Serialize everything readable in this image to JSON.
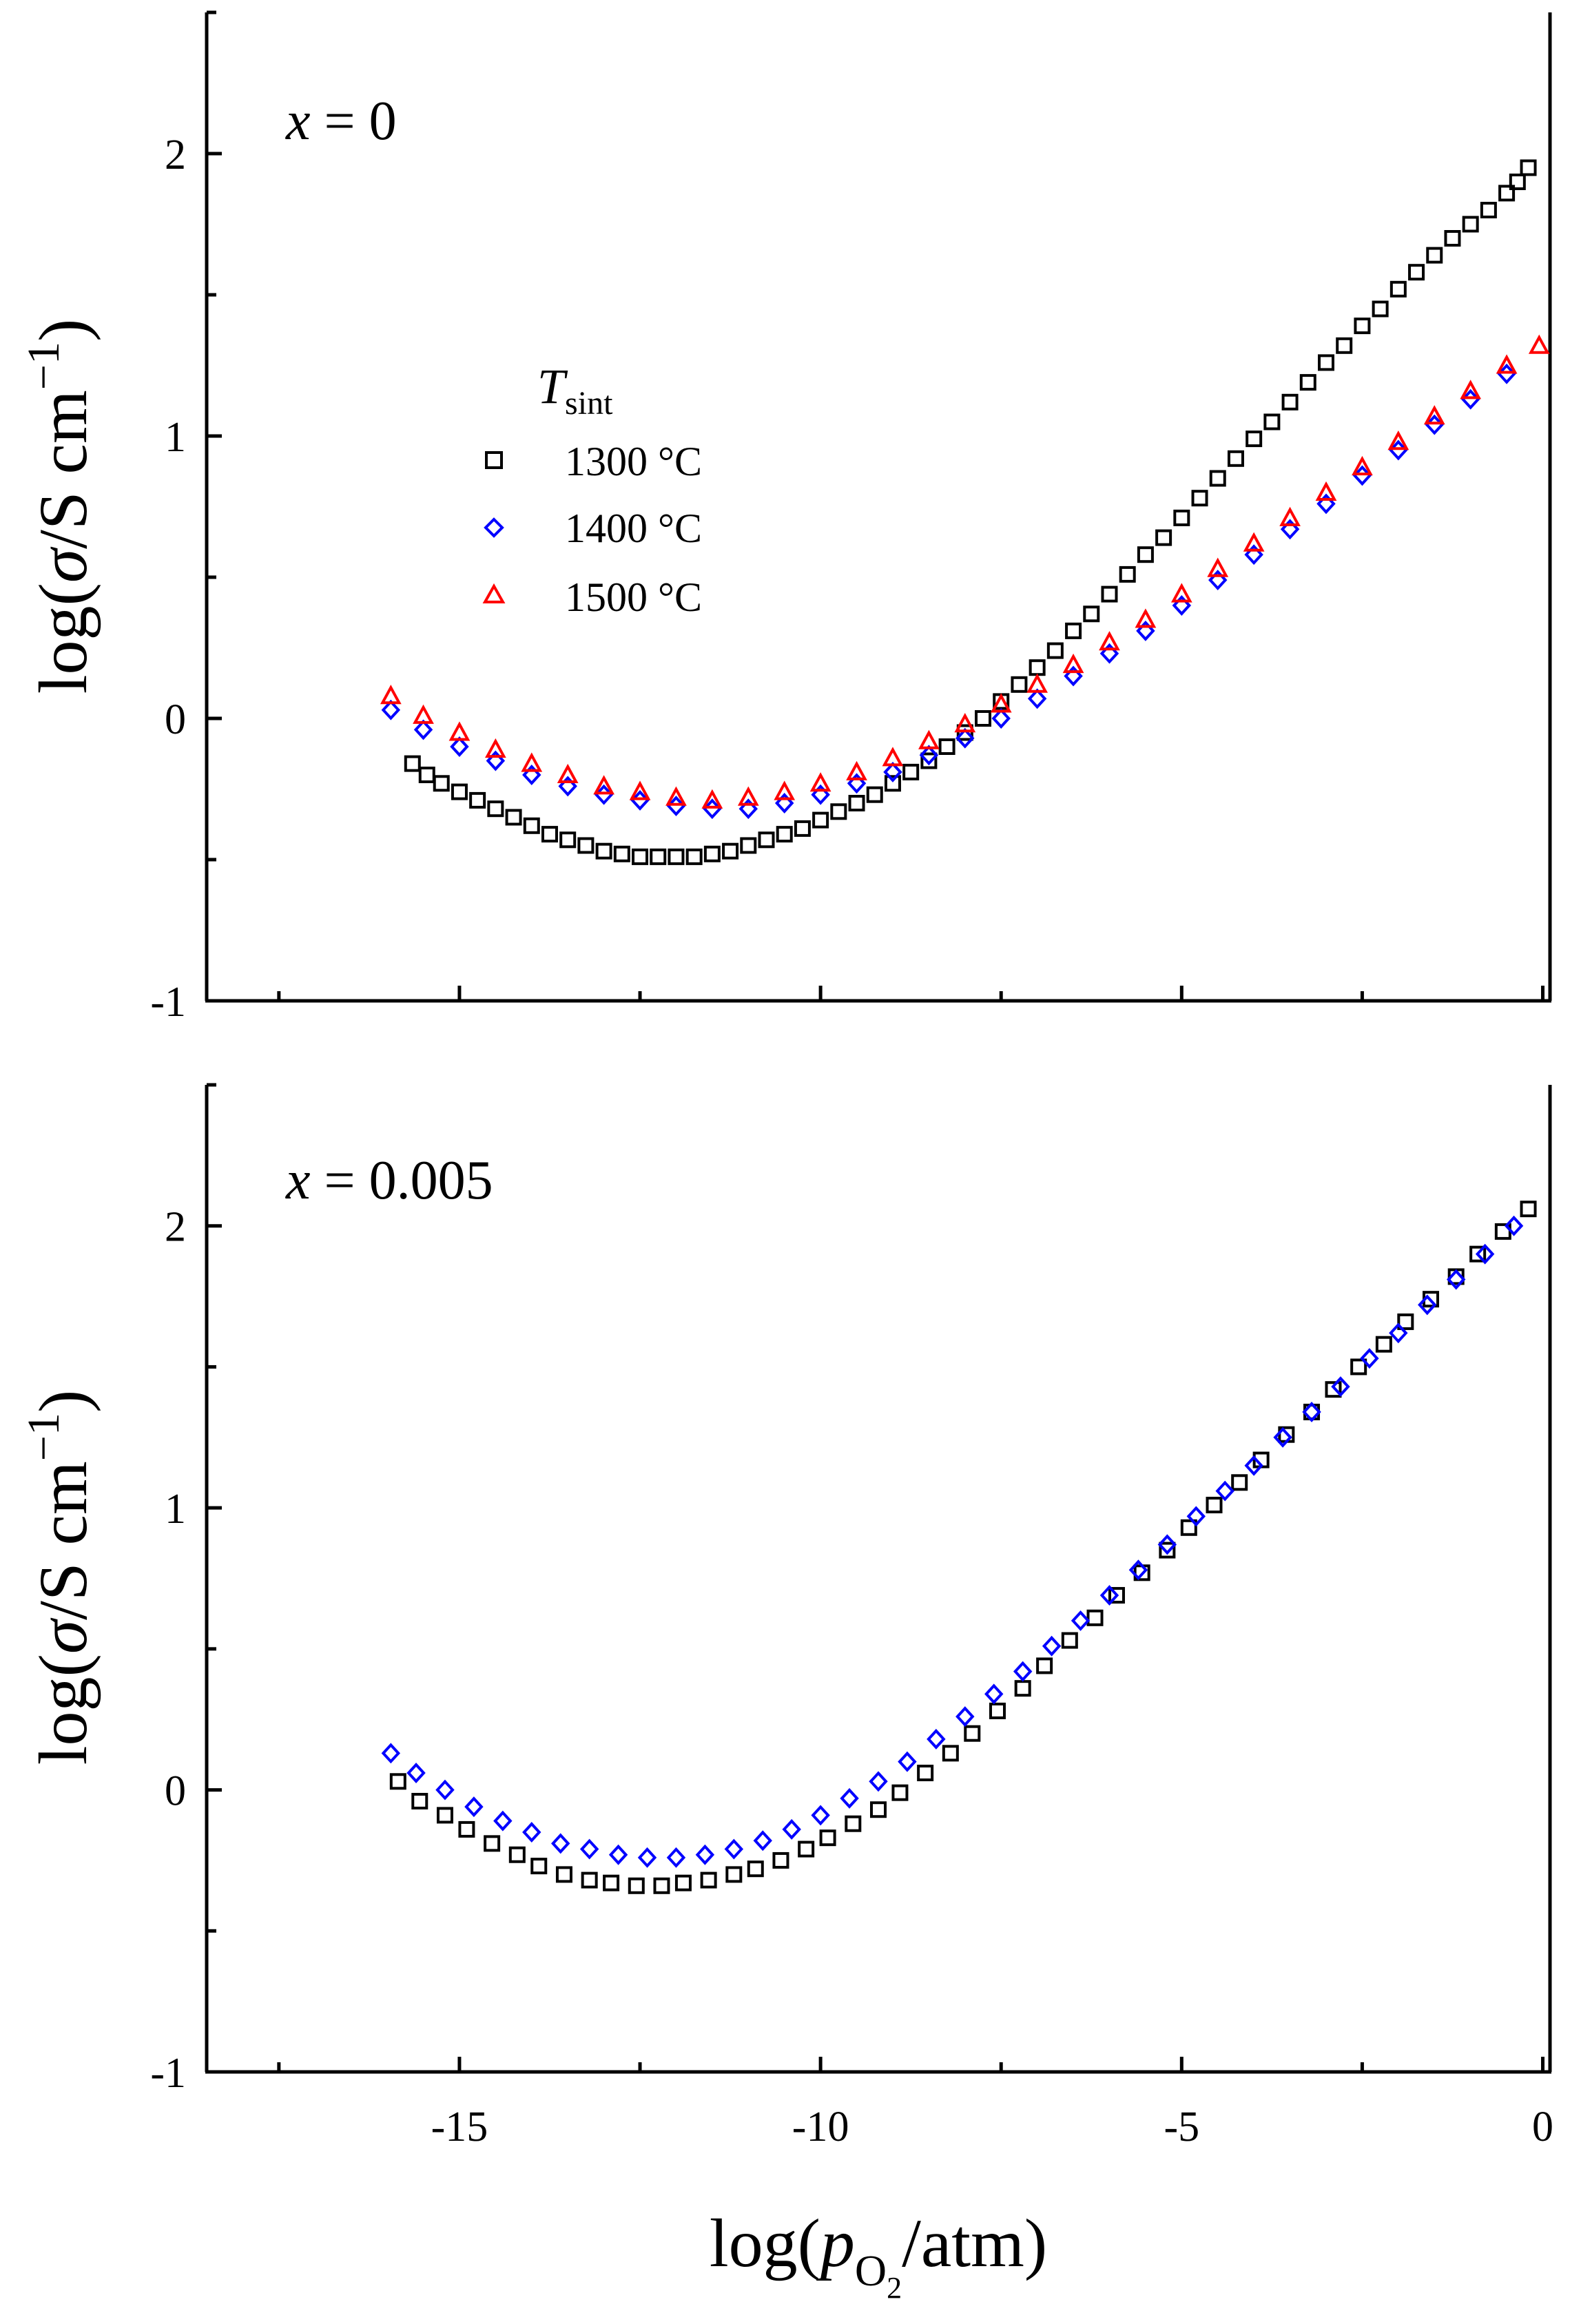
{
  "chart_data": [
    {
      "type": "scatter",
      "panel": "top",
      "annotation": {
        "var": "x",
        "rest": " = 0"
      },
      "xlim": [
        -18.5,
        0.1
      ],
      "ylim": [
        -1,
        2.5
      ],
      "xticks": [
        -15,
        -10,
        -5,
        0
      ],
      "yticks": [
        -1,
        0,
        1,
        2
      ],
      "ytick_labels": [
        "-1",
        "0",
        "1",
        "2"
      ],
      "ylabel": {
        "prefix": "log(",
        "sym": "σ",
        "unit": "/S cm",
        "sup": "−1",
        "suffix": ")"
      },
      "legend": {
        "title": "T",
        "title_sub": "sint",
        "position": "upper-left",
        "entries": [
          "1300 °C",
          "1400 °C",
          "1500 °C"
        ]
      },
      "series": [
        {
          "name": "1300 °C",
          "marker": "square",
          "color": "#000000",
          "x": [
            -15.65,
            -15.45,
            -15.25,
            -15.0,
            -14.75,
            -14.5,
            -14.25,
            -14.0,
            -13.75,
            -13.5,
            -13.25,
            -13.0,
            -12.75,
            -12.5,
            -12.25,
            -12.0,
            -11.75,
            -11.5,
            -11.25,
            -11.0,
            -10.75,
            -10.5,
            -10.25,
            -10.0,
            -9.75,
            -9.5,
            -9.25,
            -9.0,
            -8.75,
            -8.5,
            -8.25,
            -8.0,
            -7.75,
            -7.5,
            -7.25,
            -7.0,
            -6.75,
            -6.5,
            -6.25,
            -6.0,
            -5.75,
            -5.5,
            -5.25,
            -5.0,
            -4.75,
            -4.5,
            -4.25,
            -4.0,
            -3.75,
            -3.5,
            -3.25,
            -3.0,
            -2.75,
            -2.5,
            -2.25,
            -2.0,
            -1.75,
            -1.5,
            -1.25,
            -1.0,
            -0.75,
            -0.5,
            -0.35,
            -0.2
          ],
          "y": [
            -0.16,
            -0.2,
            -0.23,
            -0.26,
            -0.29,
            -0.32,
            -0.35,
            -0.38,
            -0.41,
            -0.43,
            -0.45,
            -0.47,
            -0.48,
            -0.49,
            -0.49,
            -0.49,
            -0.49,
            -0.48,
            -0.47,
            -0.45,
            -0.43,
            -0.41,
            -0.39,
            -0.36,
            -0.33,
            -0.3,
            -0.27,
            -0.23,
            -0.19,
            -0.15,
            -0.1,
            -0.05,
            0.0,
            0.06,
            0.12,
            0.18,
            0.24,
            0.31,
            0.37,
            0.44,
            0.51,
            0.58,
            0.64,
            0.71,
            0.78,
            0.85,
            0.92,
            0.99,
            1.05,
            1.12,
            1.19,
            1.26,
            1.32,
            1.39,
            1.45,
            1.52,
            1.58,
            1.64,
            1.7,
            1.75,
            1.8,
            1.86,
            1.9,
            1.95
          ]
        },
        {
          "name": "1400 °C",
          "marker": "diamond",
          "color": "#0000ff",
          "x": [
            -15.95,
            -15.5,
            -15.0,
            -14.5,
            -14.0,
            -13.5,
            -13.0,
            -12.5,
            -12.0,
            -11.5,
            -11.0,
            -10.5,
            -10.0,
            -9.5,
            -9.0,
            -8.5,
            -8.0,
            -7.5,
            -7.0,
            -6.5,
            -6.0,
            -5.5,
            -5.0,
            -4.5,
            -4.0,
            -3.5,
            -3.0,
            -2.5,
            -2.0,
            -1.5,
            -1.0,
            -0.5
          ],
          "y": [
            0.03,
            -0.04,
            -0.1,
            -0.15,
            -0.2,
            -0.24,
            -0.27,
            -0.29,
            -0.31,
            -0.32,
            -0.32,
            -0.3,
            -0.27,
            -0.23,
            -0.19,
            -0.13,
            -0.07,
            0.0,
            0.07,
            0.15,
            0.23,
            0.31,
            0.4,
            0.49,
            0.58,
            0.67,
            0.76,
            0.86,
            0.95,
            1.04,
            1.13,
            1.22
          ]
        },
        {
          "name": "1500 °C",
          "marker": "triangle",
          "color": "#ff0000",
          "x": [
            -15.95,
            -15.5,
            -15.0,
            -14.5,
            -14.0,
            -13.5,
            -13.0,
            -12.5,
            -12.0,
            -11.5,
            -11.0,
            -10.5,
            -10.0,
            -9.5,
            -9.0,
            -8.5,
            -8.0,
            -7.5,
            -7.0,
            -6.5,
            -6.0,
            -5.5,
            -5.0,
            -4.5,
            -4.0,
            -3.5,
            -3.0,
            -2.5,
            -2.0,
            -1.5,
            -1.0,
            -0.5,
            -0.05
          ],
          "y": [
            0.08,
            0.01,
            -0.05,
            -0.11,
            -0.16,
            -0.2,
            -0.24,
            -0.26,
            -0.28,
            -0.29,
            -0.28,
            -0.26,
            -0.23,
            -0.19,
            -0.14,
            -0.08,
            -0.02,
            0.05,
            0.12,
            0.19,
            0.27,
            0.35,
            0.44,
            0.53,
            0.62,
            0.71,
            0.8,
            0.89,
            0.98,
            1.07,
            1.16,
            1.25,
            1.32
          ]
        }
      ]
    },
    {
      "type": "scatter",
      "panel": "bottom",
      "annotation": {
        "var": "x",
        "rest": " = 0.005"
      },
      "xlim": [
        -18.5,
        0.1
      ],
      "ylim": [
        -1,
        2.5
      ],
      "xticks": [
        -15,
        -10,
        -5,
        0
      ],
      "xtick_labels": [
        "-15",
        "-10",
        "-5",
        "0"
      ],
      "yticks": [
        -1,
        0,
        1,
        2
      ],
      "ytick_labels": [
        "-1",
        "0",
        "1",
        "2"
      ],
      "xlabel": {
        "prefix": "log(",
        "sym": "p",
        "sub": "O",
        "subsub": "2",
        "suffix": "/atm)"
      },
      "ylabel": {
        "prefix": "log(",
        "sym": "σ",
        "unit": "/S cm",
        "sup": "−1",
        "suffix": ")"
      },
      "series": [
        {
          "name": "1300 °C",
          "marker": "square",
          "color": "#000000",
          "x": [
            -15.85,
            -15.55,
            -15.2,
            -14.9,
            -14.55,
            -14.2,
            -13.9,
            -13.55,
            -13.2,
            -12.9,
            -12.55,
            -12.2,
            -11.9,
            -11.55,
            -11.2,
            -10.9,
            -10.55,
            -10.2,
            -9.9,
            -9.55,
            -9.2,
            -8.9,
            -8.55,
            -8.2,
            -7.9,
            -7.55,
            -7.2,
            -6.9,
            -6.55,
            -6.2,
            -5.9,
            -5.55,
            -5.2,
            -4.9,
            -4.55,
            -4.2,
            -3.9,
            -3.55,
            -3.2,
            -2.9,
            -2.55,
            -2.2,
            -1.9,
            -1.55,
            -1.2,
            -0.9,
            -0.55,
            -0.2
          ],
          "y": [
            0.03,
            -0.04,
            -0.09,
            -0.14,
            -0.19,
            -0.23,
            -0.27,
            -0.3,
            -0.32,
            -0.33,
            -0.34,
            -0.34,
            -0.33,
            -0.32,
            -0.3,
            -0.28,
            -0.25,
            -0.21,
            -0.17,
            -0.12,
            -0.07,
            -0.01,
            0.06,
            0.13,
            0.2,
            0.28,
            0.36,
            0.44,
            0.53,
            0.61,
            0.69,
            0.77,
            0.85,
            0.93,
            1.01,
            1.09,
            1.17,
            1.26,
            1.34,
            1.42,
            1.5,
            1.58,
            1.66,
            1.74,
            1.82,
            1.9,
            1.98,
            2.06
          ]
        },
        {
          "name": "1400 °C",
          "marker": "diamond",
          "color": "#0000ff",
          "x": [
            -15.95,
            -15.6,
            -15.2,
            -14.8,
            -14.4,
            -14.0,
            -13.6,
            -13.2,
            -12.8,
            -12.4,
            -12.0,
            -11.6,
            -11.2,
            -10.8,
            -10.4,
            -10.0,
            -9.6,
            -9.2,
            -8.8,
            -8.4,
            -8.0,
            -7.6,
            -7.2,
            -6.8,
            -6.4,
            -6.0,
            -5.6,
            -5.2,
            -4.8,
            -4.4,
            -4.0,
            -3.6,
            -3.2,
            -2.8,
            -2.4,
            -2.0,
            -1.6,
            -1.2,
            -0.8,
            -0.4
          ],
          "y": [
            0.13,
            0.06,
            0.0,
            -0.06,
            -0.11,
            -0.15,
            -0.19,
            -0.21,
            -0.23,
            -0.24,
            -0.24,
            -0.23,
            -0.21,
            -0.18,
            -0.14,
            -0.09,
            -0.03,
            0.03,
            0.1,
            0.18,
            0.26,
            0.34,
            0.42,
            0.51,
            0.6,
            0.69,
            0.78,
            0.87,
            0.97,
            1.06,
            1.15,
            1.25,
            1.34,
            1.43,
            1.53,
            1.62,
            1.72,
            1.81,
            1.9,
            2.0
          ]
        }
      ]
    }
  ]
}
